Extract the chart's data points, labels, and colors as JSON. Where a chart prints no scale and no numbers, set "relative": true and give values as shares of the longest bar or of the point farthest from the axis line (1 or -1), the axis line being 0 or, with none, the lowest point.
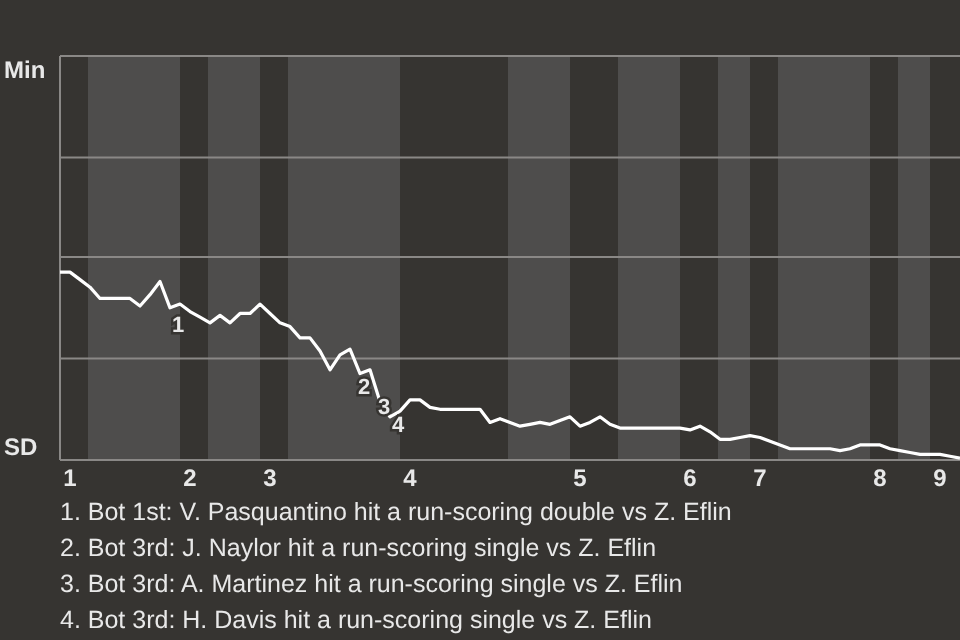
{
  "chart_data": {
    "type": "line",
    "relative": true,
    "categories": [
      null,
      "1",
      null,
      null,
      null,
      null,
      null,
      null,
      null,
      null,
      null,
      null,
      null,
      "2",
      null,
      null,
      null,
      null,
      null,
      null,
      null,
      "3",
      null,
      null,
      null,
      null,
      null,
      null,
      null,
      null,
      null,
      null,
      null,
      null,
      null,
      "4",
      null,
      null,
      null,
      null,
      null,
      null,
      null,
      null,
      null,
      null,
      null,
      null,
      null,
      null,
      null,
      null,
      "5",
      null,
      null,
      null,
      null,
      null,
      null,
      null,
      null,
      null,
      null,
      "6",
      null,
      null,
      null,
      null,
      null,
      null,
      "7",
      null,
      null,
      null,
      null,
      null,
      null,
      null,
      null,
      null,
      null,
      null,
      "8",
      null,
      null,
      null,
      null,
      null,
      "9",
      null,
      null
    ],
    "marker": "none",
    "line_style": "solid",
    "series": [
      {
        "color": "#ffffff",
        "values": [
          1,
          1,
          0.96,
          0.92,
          0.86,
          0.86,
          0.86,
          0.86,
          0.82,
          0.88,
          0.95,
          0.81,
          0.83,
          0.79,
          0.76,
          0.73,
          0.77,
          0.73,
          0.78,
          0.78,
          0.83,
          0.78,
          0.73,
          0.71,
          0.65,
          0.65,
          0.58,
          0.48,
          0.56,
          0.59,
          0.46,
          0.48,
          0.31,
          0.23,
          0.26,
          0.32,
          0.32,
          0.28,
          0.27,
          0.27,
          0.27,
          0.27,
          0.27,
          0.2,
          0.22,
          0.2,
          0.18,
          0.19,
          0.2,
          0.19,
          0.21,
          0.23,
          0.18,
          0.2,
          0.23,
          0.19,
          0.17,
          0.17,
          0.17,
          0.17,
          0.17,
          0.17,
          0.17,
          0.16,
          0.18,
          0.15,
          0.11,
          0.11,
          0.12,
          0.13,
          0.12,
          0.1,
          0.08,
          0.06,
          0.06,
          0.06,
          0.06,
          0.06,
          0.05,
          0.06,
          0.08,
          0.08,
          0.08,
          0.06,
          0.05,
          0.04,
          0.03,
          0.03,
          0.03,
          0.02,
          0.01
        ]
      }
    ],
    "ref_lines": [
      {
        "axis": "y",
        "value": 0.54,
        "color": "#8a8886"
      },
      {
        "axis": "y",
        "value": 1.08,
        "color": "#8a8886"
      },
      {
        "axis": "y",
        "value": 1.61,
        "color": "#8a8886"
      },
      {
        "axis": "y",
        "value": 2.15,
        "color": "#8a8886"
      }
    ],
    "annotations": [
      "Min",
      "SD",
      "1",
      "2",
      "3",
      "4",
      "1. Bot 1st: V. Pasquantino hit a run-scoring double vs Z. Eflin",
      "2. Bot 3rd: J. Naylor hit a run-scoring single vs Z. Eflin",
      "3. Bot 3rd: A. Martinez hit a run-scoring single vs Z. Eflin",
      "4. Bot 3rd: H. Davis hit a run-scoring single vs Z. Eflin"
    ]
  }
}
